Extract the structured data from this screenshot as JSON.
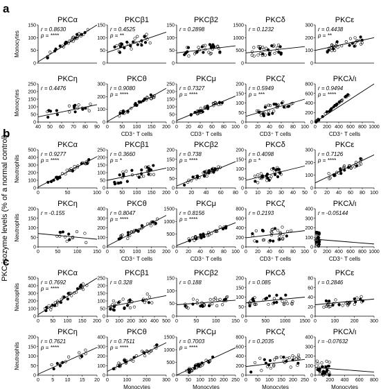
{
  "figure": {
    "shared_y_label": "PKC isozyme levels (% of a normal control)",
    "panels": [
      {
        "letter": "a",
        "rows": [
          {
            "y_axis_label": "Monocytes",
            "x_axis_label": ""
          },
          {
            "y_axis_label": "Monocytes",
            "x_axis_label": "CD3⁺ T cells"
          }
        ]
      },
      {
        "letter": "b",
        "rows": [
          {
            "y_axis_label": "Neutrophils",
            "x_axis_label": ""
          },
          {
            "y_axis_label": "Neutrophils",
            "x_axis_label": "CD3⁺ T cells"
          }
        ]
      },
      {
        "letter": "c",
        "rows": [
          {
            "y_axis_label": "Neutrophils",
            "x_axis_label": ""
          },
          {
            "y_axis_label": "Neutrophils",
            "x_axis_label": "Monocytes"
          }
        ]
      }
    ]
  },
  "chart_data": [
    {
      "panel": "a",
      "row": 0,
      "col": 0,
      "type": "scatter",
      "title": "PKCα",
      "r_label": "r = 0.8630",
      "p_label": "p = ****",
      "xlim": [
        0,
        150
      ],
      "ylim": [
        0,
        150
      ],
      "x_ticks": [],
      "y_ticks": [
        0,
        50,
        100,
        150
      ],
      "slope": 1.0,
      "intercept": 5,
      "n_points": 32,
      "seed": 11,
      "x_range": [
        20,
        130
      ],
      "noise": 10
    },
    {
      "panel": "a",
      "row": 0,
      "col": 1,
      "type": "scatter",
      "title": "PKCβ1",
      "r_label": "r = 0.4525",
      "p_label": "p = **",
      "xlim": [
        0,
        200
      ],
      "ylim": [
        0,
        150
      ],
      "x_ticks": [],
      "y_ticks": [
        0,
        50,
        100,
        150
      ],
      "slope": 0.4,
      "intercept": 42,
      "n_points": 32,
      "seed": 12,
      "x_range": [
        20,
        150
      ],
      "noise": 22
    },
    {
      "panel": "a",
      "row": 0,
      "col": 2,
      "type": "scatter",
      "title": "PKCβ2",
      "r_label": "r = 0.2898",
      "p_label": "",
      "xlim": [
        0,
        80
      ],
      "ylim": [
        0,
        150
      ],
      "x_ticks": [],
      "y_ticks": [
        0,
        50,
        100,
        150
      ],
      "slope": 0.35,
      "intercept": 40,
      "n_points": 32,
      "seed": 13,
      "x_range": [
        10,
        60
      ],
      "noise": 20
    },
    {
      "panel": "a",
      "row": 0,
      "col": 3,
      "type": "scatter",
      "title": "PKCδ",
      "r_label": "r = 0.1232",
      "p_label": "",
      "xlim": [
        0,
        50
      ],
      "ylim": [
        0,
        1500
      ],
      "x_ticks": [],
      "y_ticks": [
        0,
        500,
        1000,
        1500
      ],
      "slope": 5,
      "intercept": 400,
      "n_points": 32,
      "seed": 14,
      "x_range": [
        5,
        30
      ],
      "noise": 200
    },
    {
      "panel": "a",
      "row": 0,
      "col": 4,
      "type": "scatter",
      "title": "PKCε",
      "r_label": "r = 0.4438",
      "p_label": "p = **",
      "xlim": [
        0,
        100
      ],
      "ylim": [
        0,
        300
      ],
      "x_ticks": [],
      "y_ticks": [
        0,
        100,
        200,
        300
      ],
      "slope": 1.0,
      "intercept": 100,
      "n_points": 32,
      "seed": 15,
      "x_range": [
        20,
        80
      ],
      "noise": 35
    },
    {
      "panel": "a",
      "row": 1,
      "col": 0,
      "type": "scatter",
      "title": "PKCη",
      "r_label": "r = 0.4476",
      "p_label": "",
      "xlim": [
        40,
        90
      ],
      "ylim": [
        0,
        250
      ],
      "x_ticks": [
        40,
        50,
        60,
        70,
        80,
        90
      ],
      "y_ticks": [
        0,
        50,
        100,
        150,
        200,
        250
      ],
      "slope": 1.6,
      "intercept": -30,
      "n_points": 20,
      "seed": 16,
      "x_range": [
        45,
        85
      ],
      "noise": 35
    },
    {
      "panel": "a",
      "row": 1,
      "col": 1,
      "type": "scatter",
      "title": "PKCθ",
      "r_label": "r = 0.9080",
      "p_label": "p = ****",
      "xlim": [
        0,
        200
      ],
      "ylim": [
        0,
        300
      ],
      "x_ticks": [
        0,
        50,
        100,
        150,
        200
      ],
      "y_ticks": [
        0,
        100,
        200,
        300
      ],
      "slope": 1.3,
      "intercept": 5,
      "n_points": 32,
      "seed": 17,
      "x_range": [
        30,
        160
      ],
      "noise": 18
    },
    {
      "panel": "a",
      "row": 1,
      "col": 2,
      "type": "scatter",
      "title": "PKCμ",
      "r_label": "r = 0.7327",
      "p_label": "p = ****",
      "xlim": [
        0,
        100
      ],
      "ylim": [
        0,
        250
      ],
      "x_ticks": [
        0,
        20,
        40,
        60,
        80,
        100
      ],
      "y_ticks": [
        0,
        50,
        100,
        150,
        200,
        250
      ],
      "slope": 1.6,
      "intercept": 10,
      "n_points": 32,
      "seed": 18,
      "x_range": [
        20,
        80
      ],
      "noise": 15
    },
    {
      "panel": "a",
      "row": 1,
      "col": 3,
      "type": "scatter",
      "title": "PKCζ",
      "r_label": "r = 0.5949",
      "p_label": "p = ***",
      "xlim": [
        0,
        100
      ],
      "ylim": [
        0,
        200
      ],
      "x_ticks": [
        0,
        20,
        40,
        60,
        80,
        100
      ],
      "y_ticks": [
        0,
        50,
        100,
        150,
        200
      ],
      "slope": 0.9,
      "intercept": 30,
      "n_points": 32,
      "seed": 19,
      "x_range": [
        15,
        80
      ],
      "noise": 25
    },
    {
      "panel": "a",
      "row": 1,
      "col": 4,
      "type": "scatter",
      "title": "PKCλ/ι",
      "r_label": "r = 0.9494",
      "p_label": "p = ****",
      "xlim": [
        0,
        1000
      ],
      "ylim": [
        0,
        800
      ],
      "x_ticks": [
        0,
        200,
        400,
        600,
        800,
        1000
      ],
      "y_ticks": [
        0,
        200,
        400,
        600,
        800
      ],
      "slope": 1.0,
      "intercept": 0,
      "n_points": 32,
      "seed": 20,
      "x_range": [
        10,
        600
      ],
      "noise": 20
    },
    {
      "panel": "b",
      "row": 0,
      "col": 0,
      "type": "scatter",
      "title": "PKCα",
      "r_label": "r = 0.9277",
      "p_label": "p = ****",
      "xlim": [
        0,
        100
      ],
      "ylim": [
        0,
        500
      ],
      "x_ticks": [
        0,
        50,
        100
      ],
      "y_ticks": [
        0,
        100,
        200,
        300,
        400,
        500
      ],
      "slope": 4,
      "intercept": 10,
      "n_points": 32,
      "seed": 21,
      "x_range": [
        15,
        90
      ],
      "noise": 25
    },
    {
      "panel": "b",
      "row": 0,
      "col": 1,
      "type": "scatter",
      "title": "PKCβ1",
      "r_label": "r = 0.3660",
      "p_label": "p = *",
      "xlim": [
        0,
        200
      ],
      "ylim": [
        0,
        250
      ],
      "x_ticks": [
        0,
        50,
        100,
        150,
        200
      ],
      "y_ticks": [
        0,
        50,
        100,
        150,
        200,
        250
      ],
      "slope": 0.4,
      "intercept": 50,
      "n_points": 32,
      "seed": 22,
      "x_range": [
        20,
        170
      ],
      "noise": 35
    },
    {
      "panel": "b",
      "row": 0,
      "col": 2,
      "type": "scatter",
      "title": "PKCβ2",
      "r_label": "r = 0.738",
      "p_label": "p = ****",
      "xlim": [
        0,
        80
      ],
      "ylim": [
        0,
        200
      ],
      "x_ticks": [
        0,
        20,
        40,
        60,
        80
      ],
      "y_ticks": [
        0,
        50,
        100,
        150,
        200
      ],
      "slope": 1.6,
      "intercept": 10,
      "n_points": 32,
      "seed": 23,
      "x_range": [
        10,
        60
      ],
      "noise": 15
    },
    {
      "panel": "b",
      "row": 0,
      "col": 3,
      "type": "scatter",
      "title": "PKCδ",
      "r_label": "r = 0.4098",
      "p_label": "p = *",
      "xlim": [
        0,
        50
      ],
      "ylim": [
        0,
        200
      ],
      "x_ticks": [
        0,
        10,
        20,
        30,
        40,
        50
      ],
      "y_ticks": [
        0,
        50,
        100,
        150,
        200
      ],
      "slope": 1.5,
      "intercept": 40,
      "n_points": 32,
      "seed": 24,
      "x_range": [
        5,
        30
      ],
      "noise": 30
    },
    {
      "panel": "b",
      "row": 0,
      "col": 4,
      "type": "scatter",
      "title": "PKCε",
      "r_label": "r = 0.7126",
      "p_label": "p = ****",
      "xlim": [
        0,
        100
      ],
      "ylim": [
        0,
        300
      ],
      "x_ticks": [
        0,
        20,
        40,
        60,
        80,
        100
      ],
      "y_ticks": [
        0,
        100,
        200,
        300
      ],
      "slope": 2.2,
      "intercept": 40,
      "n_points": 32,
      "seed": 25,
      "x_range": [
        20,
        80
      ],
      "noise": 25
    },
    {
      "panel": "b",
      "row": 1,
      "col": 0,
      "type": "scatter",
      "title": "PKCη",
      "r_label": "r = -0.155",
      "p_label": "",
      "xlim": [
        0,
        150
      ],
      "ylim": [
        0,
        200
      ],
      "x_ticks": [
        0,
        50,
        100,
        150
      ],
      "y_ticks": [
        0,
        50,
        100,
        150,
        200
      ],
      "slope": -0.2,
      "intercept": 70,
      "n_points": 14,
      "seed": 26,
      "x_range": [
        40,
        130
      ],
      "noise": 30
    },
    {
      "panel": "b",
      "row": 1,
      "col": 1,
      "type": "scatter",
      "title": "PKCθ",
      "r_label": "r = 0.8047",
      "p_label": "p = ****",
      "xlim": [
        0,
        200
      ],
      "ylim": [
        0,
        400
      ],
      "x_ticks": [
        0,
        50,
        100,
        150,
        200
      ],
      "y_ticks": [
        0,
        100,
        200,
        300,
        400
      ],
      "slope": 1.6,
      "intercept": 10,
      "n_points": 32,
      "seed": 27,
      "x_range": [
        30,
        170
      ],
      "noise": 35
    },
    {
      "panel": "b",
      "row": 1,
      "col": 2,
      "type": "scatter",
      "title": "PKCμ",
      "r_label": "r = 0.8156",
      "p_label": "p = ****",
      "xlim": [
        0,
        100
      ],
      "ylim": [
        0,
        1500
      ],
      "x_ticks": [
        0,
        20,
        40,
        60,
        80,
        100
      ],
      "y_ticks": [
        0,
        500,
        1000,
        1500
      ],
      "slope": 9,
      "intercept": 50,
      "n_points": 32,
      "seed": 28,
      "x_range": [
        20,
        85
      ],
      "noise": 90
    },
    {
      "panel": "b",
      "row": 1,
      "col": 3,
      "type": "scatter",
      "title": "PKCζ",
      "r_label": "r = 0.2193",
      "p_label": "",
      "xlim": [
        0,
        100
      ],
      "ylim": [
        0,
        800
      ],
      "x_ticks": [
        0,
        20,
        40,
        60,
        80,
        100
      ],
      "y_ticks": [
        0,
        200,
        400,
        600,
        800
      ],
      "slope": 1.5,
      "intercept": 190,
      "n_points": 32,
      "seed": 29,
      "x_range": [
        10,
        80
      ],
      "noise": 140
    },
    {
      "panel": "b",
      "row": 1,
      "col": 4,
      "type": "scatter",
      "title": "PKCλ/ι",
      "r_label": "r = -0.05144",
      "p_label": "",
      "xlim": [
        0,
        1000
      ],
      "ylim": [
        0,
        400
      ],
      "x_ticks": [
        0,
        200,
        400,
        600,
        800,
        1000
      ],
      "y_ticks": [
        0,
        100,
        200,
        300,
        400
      ],
      "slope": -0.05,
      "intercept": 80,
      "n_points": 32,
      "seed": 30,
      "x_range": [
        5,
        80
      ],
      "noise": 80
    },
    {
      "panel": "c",
      "row": 0,
      "col": 0,
      "type": "scatter",
      "title": "PKCα",
      "r_label": "r = 0.7692",
      "p_label": "p = ****",
      "xlim": [
        0,
        200
      ],
      "ylim": [
        0,
        500
      ],
      "x_ticks": [
        0,
        50,
        100,
        150,
        200
      ],
      "y_ticks": [
        0,
        100,
        200,
        300,
        400,
        500
      ],
      "slope": 2.4,
      "intercept": 20,
      "n_points": 32,
      "seed": 31,
      "x_range": [
        20,
        170
      ],
      "noise": 40
    },
    {
      "panel": "c",
      "row": 0,
      "col": 1,
      "type": "scatter",
      "title": "PKCβ1",
      "r_label": "r = 0.328",
      "p_label": "",
      "xlim": [
        0,
        500
      ],
      "ylim": [
        0,
        250
      ],
      "x_ticks": [
        0,
        100,
        200,
        300,
        400,
        500
      ],
      "y_ticks": [
        0,
        50,
        100,
        150,
        200,
        250
      ],
      "slope": 0.15,
      "intercept": 60,
      "n_points": 32,
      "seed": 32,
      "x_range": [
        20,
        400
      ],
      "noise": 35
    },
    {
      "panel": "c",
      "row": 0,
      "col": 2,
      "type": "scatter",
      "title": "PKCβ2",
      "r_label": "r = 0.188",
      "p_label": "",
      "xlim": [
        0,
        150
      ],
      "ylim": [
        0,
        150
      ],
      "x_ticks": [
        0,
        50,
        100,
        150
      ],
      "y_ticks": [
        0,
        50,
        100,
        150
      ],
      "slope": 0.12,
      "intercept": 45,
      "n_points": 32,
      "seed": 33,
      "x_range": [
        20,
        130
      ],
      "noise": 18
    },
    {
      "panel": "c",
      "row": 0,
      "col": 3,
      "type": "scatter",
      "title": "PKCδ",
      "r_label": "r = 0.085",
      "p_label": "",
      "xlim": [
        0,
        1500
      ],
      "ylim": [
        0,
        200
      ],
      "x_ticks": [
        0,
        500,
        1000,
        1500
      ],
      "y_ticks": [
        0,
        50,
        100,
        150,
        200
      ],
      "slope": 0.02,
      "intercept": 70,
      "n_points": 32,
      "seed": 34,
      "x_range": [
        50,
        1200
      ],
      "noise": 30
    },
    {
      "panel": "c",
      "row": 0,
      "col": 4,
      "type": "scatter",
      "title": "PKCε",
      "r_label": "r = 0.2846",
      "p_label": "",
      "xlim": [
        0,
        300
      ],
      "ylim": [
        0,
        80
      ],
      "x_ticks": [
        0,
        100,
        200,
        300
      ],
      "y_ticks": [
        0,
        20,
        40,
        60,
        80
      ],
      "slope": 0.04,
      "intercept": 24,
      "n_points": 32,
      "seed": 35,
      "x_range": [
        40,
        250
      ],
      "noise": 8
    },
    {
      "panel": "c",
      "row": 1,
      "col": 0,
      "type": "scatter",
      "title": "PKCη",
      "r_label": "r = 0.7621",
      "p_label": "p = ****",
      "xlim": [
        0,
        20
      ],
      "ylim": [
        0,
        200
      ],
      "x_ticks": [
        0,
        5,
        10,
        15,
        20
      ],
      "y_ticks": [
        0,
        50,
        100,
        150,
        200
      ],
      "slope": 7,
      "intercept": 5,
      "n_points": 14,
      "seed": 36,
      "x_range": [
        2,
        18
      ],
      "noise": 18
    },
    {
      "panel": "c",
      "row": 1,
      "col": 1,
      "type": "scatter",
      "title": "PKCθ",
      "r_label": "r = 0.7511",
      "p_label": "p = ****",
      "xlim": [
        0,
        300
      ],
      "ylim": [
        0,
        400
      ],
      "x_ticks": [
        0,
        100,
        200,
        300
      ],
      "y_ticks": [
        0,
        100,
        200,
        300,
        400
      ],
      "slope": 1.0,
      "intercept": 40,
      "n_points": 32,
      "seed": 37,
      "x_range": [
        30,
        260
      ],
      "noise": 35
    },
    {
      "panel": "c",
      "row": 1,
      "col": 2,
      "type": "scatter",
      "title": "PKCμ",
      "r_label": "r = 0.7003",
      "p_label": "p = ****",
      "xlim": [
        0,
        250
      ],
      "ylim": [
        0,
        1500
      ],
      "x_ticks": [
        0,
        50,
        100,
        150,
        200,
        250
      ],
      "y_ticks": [
        0,
        500,
        1000,
        1500
      ],
      "slope": 4.5,
      "intercept": -50,
      "n_points": 32,
      "seed": 38,
      "x_range": [
        40,
        160
      ],
      "noise": 90
    },
    {
      "panel": "c",
      "row": 1,
      "col": 3,
      "type": "scatter",
      "title": "PKCζ",
      "r_label": "r = 0.2035",
      "p_label": "",
      "xlim": [
        0,
        250
      ],
      "ylim": [
        0,
        800
      ],
      "x_ticks": [
        0,
        50,
        100,
        150,
        200,
        250
      ],
      "y_ticks": [
        0,
        200,
        400,
        600,
        800
      ],
      "slope": 0.6,
      "intercept": 180,
      "n_points": 32,
      "seed": 39,
      "x_range": [
        20,
        230
      ],
      "noise": 140
    },
    {
      "panel": "c",
      "row": 1,
      "col": 4,
      "type": "scatter",
      "title": "PKCλ/ι",
      "r_label": "r = -0.07632",
      "p_label": "",
      "xlim": [
        0,
        800
      ],
      "ylim": [
        0,
        400
      ],
      "x_ticks": [
        0,
        200,
        400,
        600,
        800
      ],
      "y_ticks": [
        0,
        100,
        200,
        300,
        400
      ],
      "slope": -0.06,
      "intercept": 80,
      "n_points": 32,
      "seed": 40,
      "x_range": [
        5,
        200
      ],
      "noise": 80
    }
  ]
}
